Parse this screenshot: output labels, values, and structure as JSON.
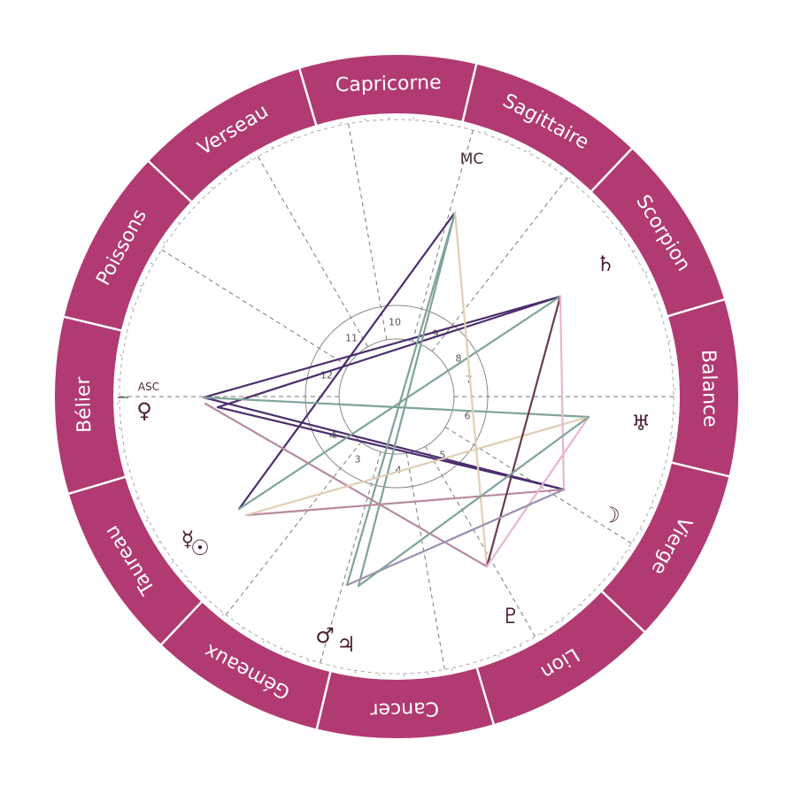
{
  "colors": {
    "ring": "#b13a72",
    "ring_divider": "#ffffff",
    "sign_text": "#ffffff",
    "house_line": "#7a7a7a",
    "glyph": "#4a1f2e",
    "aspect_dark_purple": "#4b2d6e",
    "aspect_sage": "#7fa39a",
    "aspect_tan": "#e0cfb2",
    "aspect_pink": "#e8b7cb",
    "aspect_mauve": "#b88a9f",
    "aspect_plum": "#6b3a4e",
    "aspect_lavender": "#9d8fb0"
  },
  "signs": [
    {
      "name": "Bélier"
    },
    {
      "name": "Taureau"
    },
    {
      "name": "Gémeaux"
    },
    {
      "name": "Cancer"
    },
    {
      "name": "Lion"
    },
    {
      "name": "Vierge"
    },
    {
      "name": "Balance"
    },
    {
      "name": "Scorpion"
    },
    {
      "name": "Sagittaire"
    },
    {
      "name": "Capricorne"
    },
    {
      "name": "Verseau"
    },
    {
      "name": "Poissons"
    }
  ],
  "houses": [
    "1",
    "2",
    "3",
    "4",
    "5",
    "6",
    "7",
    "8",
    "9",
    "10",
    "11",
    "12"
  ],
  "angles": {
    "asc": "ASC",
    "mc": "MC"
  },
  "planets": [
    {
      "name": "Saturne",
      "glyph": "♄",
      "icon": "saturn-icon"
    },
    {
      "name": "Uranus",
      "glyph": "♅",
      "icon": "uranus-icon"
    },
    {
      "name": "Lune",
      "glyph": "☽",
      "icon": "moon-icon"
    },
    {
      "name": "Pluton",
      "glyph": "♇",
      "icon": "pluto-icon"
    },
    {
      "name": "Mars",
      "glyph": "♂",
      "icon": "mars-icon"
    },
    {
      "name": "Jupiter",
      "glyph": "♃",
      "icon": "jupiter-icon"
    },
    {
      "name": "Mercure",
      "glyph": "☿",
      "icon": "mercury-icon"
    },
    {
      "name": "Soleil",
      "glyph": "☉",
      "icon": "sun-icon"
    },
    {
      "name": "Vénus",
      "glyph": "♀",
      "icon": "venus-icon"
    }
  ]
}
